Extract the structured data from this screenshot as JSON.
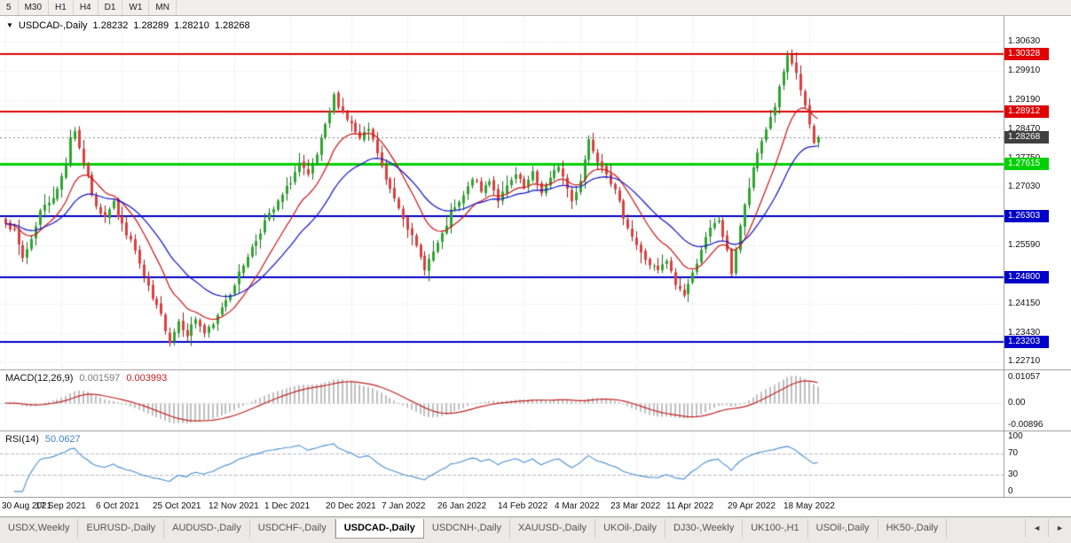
{
  "toolbar": {
    "timeframes": [
      "5",
      "M30",
      "H1",
      "H4",
      "D1",
      "W1",
      "MN"
    ]
  },
  "chart": {
    "symbol_period": "USDCAD-,Daily",
    "open": "1.28232",
    "high": "1.28289",
    "low": "1.28210",
    "close": "1.28268"
  },
  "colors": {
    "grid": "#dedede",
    "up_fill": "#2fa52f",
    "up_stroke": "#147221",
    "down_fill": "#d94141",
    "down_stroke": "#9e1a1a",
    "macd_hist": "#bfbfbf",
    "macd_signal": "#c42020",
    "rsi_line": "#4a90d2",
    "rsi_level": "#b9b9d0",
    "current_line": "#888888",
    "separator": "#9a9a9a"
  },
  "price_axis": {
    "grid": {
      "start": 1.3063,
      "step": 0.0072,
      "count": 12
    },
    "labels": [
      {
        "text": "1.30630",
        "value": 1.3063
      },
      {
        "text": "1.29910",
        "value": 1.2991
      },
      {
        "text": "1.29190",
        "value": 1.2919
      },
      {
        "text": "1.28470",
        "value": 1.2847
      },
      {
        "text": "1.27750",
        "value": 1.2775
      },
      {
        "text": "1.27030",
        "value": 1.2703
      },
      {
        "text": "1.25590",
        "value": 1.2559
      },
      {
        "text": "1.24150",
        "value": 1.2415
      },
      {
        "text": "1.23430",
        "value": 1.2343
      },
      {
        "text": "1.22710",
        "value": 1.2271
      }
    ]
  },
  "levels": [
    {
      "label": "1.30328",
      "value": 1.30328,
      "color": "#e00000",
      "width": 2
    },
    {
      "label": "1.28912",
      "value": 1.28912,
      "color": "#e00000",
      "width": 2
    },
    {
      "label": "1.27615",
      "value": 1.27615,
      "color": "#00d000",
      "width": 3
    },
    {
      "label": "1.26303",
      "value": 1.26303,
      "color": "#0000c8",
      "width": 2
    },
    {
      "label": "1.24800",
      "value": 1.248,
      "color": "#0000c8",
      "width": 2
    },
    {
      "label": "1.23203",
      "value": 1.23203,
      "color": "#0000c8",
      "width": 2
    }
  ],
  "current_price": {
    "label": "1.28268",
    "value": 1.28268,
    "badge_color": "#404040"
  },
  "overlays": [
    {
      "name": "ma-fast",
      "type": "ema",
      "period": 12,
      "color": "#cc1111"
    },
    {
      "name": "ma-slow",
      "type": "ema",
      "period": 26,
      "color": "#1111cc"
    }
  ],
  "macd": {
    "label": "MACD(12,26,9)",
    "value_main": "0.001597",
    "value_signal": "0.003993",
    "fast": 12,
    "slow": 26,
    "signal": 9,
    "range": {
      "min": -0.0113,
      "max": 0.0135
    },
    "axis_labels": [
      {
        "text": "0.01057",
        "value": 0.01057
      },
      {
        "text": "0.00",
        "value": 0
      },
      {
        "text": "-0.00896",
        "value": -0.00896
      }
    ]
  },
  "rsi": {
    "label": "RSI(14)",
    "value": "50.0627",
    "period": 14,
    "levels": [
      70,
      30
    ],
    "range": {
      "min": -10,
      "max": 110
    },
    "axis_labels": [
      {
        "text": "100",
        "value": 100
      },
      {
        "text": "70",
        "value": 70
      },
      {
        "text": "30",
        "value": 30
      },
      {
        "text": "0",
        "value": 0
      }
    ]
  },
  "chart_data": {
    "type": "candlestick",
    "symbol": "USDCAD-",
    "period": "Daily",
    "num_candles": 189,
    "seed": 7,
    "last_close": 1.28268,
    "price_range": {
      "min": 1.2252,
      "max": 1.3127
    },
    "close_anchors": [
      [
        0,
        1.262
      ],
      [
        2,
        1.259
      ],
      [
        4,
        1.2527
      ],
      [
        6,
        1.2575
      ],
      [
        8,
        1.2645
      ],
      [
        10,
        1.2668
      ],
      [
        12,
        1.2695
      ],
      [
        14,
        1.2765
      ],
      [
        15,
        1.2828
      ],
      [
        16,
        1.2845
      ],
      [
        17,
        1.28
      ],
      [
        19,
        1.2725
      ],
      [
        21,
        1.265
      ],
      [
        23,
        1.2635
      ],
      [
        25,
        1.2672
      ],
      [
        26,
        1.2628
      ],
      [
        28,
        1.259
      ],
      [
        30,
        1.2545
      ],
      [
        32,
        1.248
      ],
      [
        34,
        1.2425
      ],
      [
        36,
        1.2385
      ],
      [
        38,
        1.2322
      ],
      [
        40,
        1.2372
      ],
      [
        42,
        1.234
      ],
      [
        44,
        1.2378
      ],
      [
        46,
        1.2342
      ],
      [
        48,
        1.236
      ],
      [
        50,
        1.2408
      ],
      [
        52,
        1.2442
      ],
      [
        54,
        1.2488
      ],
      [
        56,
        1.2535
      ],
      [
        58,
        1.2572
      ],
      [
        60,
        1.2618
      ],
      [
        62,
        1.2648
      ],
      [
        64,
        1.2682
      ],
      [
        66,
        1.2718
      ],
      [
        68,
        1.2762
      ],
      [
        70,
        1.2728
      ],
      [
        72,
        1.2782
      ],
      [
        74,
        1.2852
      ],
      [
        76,
        1.2928
      ],
      [
        78,
        1.2888
      ],
      [
        80,
        1.2858
      ],
      [
        82,
        1.282
      ],
      [
        84,
        1.2846
      ],
      [
        86,
        1.2788
      ],
      [
        88,
        1.2718
      ],
      [
        90,
        1.2678
      ],
      [
        92,
        1.2632
      ],
      [
        94,
        1.2578
      ],
      [
        96,
        1.2528
      ],
      [
        97,
        1.2505
      ],
      [
        99,
        1.2542
      ],
      [
        101,
        1.2582
      ],
      [
        103,
        1.264
      ],
      [
        105,
        1.2662
      ],
      [
        107,
        1.27
      ],
      [
        108,
        1.2728
      ],
      [
        110,
        1.2692
      ],
      [
        112,
        1.2722
      ],
      [
        114,
        1.2672
      ],
      [
        116,
        1.2702
      ],
      [
        118,
        1.2732
      ],
      [
        120,
        1.27
      ],
      [
        122,
        1.2736
      ],
      [
        124,
        1.2692
      ],
      [
        126,
        1.2722
      ],
      [
        128,
        1.2758
      ],
      [
        130,
        1.27
      ],
      [
        131,
        1.2668
      ],
      [
        133,
        1.2722
      ],
      [
        135,
        1.2822
      ],
      [
        137,
        1.2772
      ],
      [
        139,
        1.2742
      ],
      [
        141,
        1.2692
      ],
      [
        143,
        1.2632
      ],
      [
        145,
        1.2582
      ],
      [
        147,
        1.2538
      ],
      [
        149,
        1.2512
      ],
      [
        151,
        1.2495
      ],
      [
        153,
        1.252
      ],
      [
        155,
        1.2462
      ],
      [
        157,
        1.2438
      ],
      [
        159,
        1.2488
      ],
      [
        161,
        1.2552
      ],
      [
        163,
        1.2598
      ],
      [
        165,
        1.2622
      ],
      [
        167,
        1.2542
      ],
      [
        168,
        1.2492
      ],
      [
        170,
        1.2608
      ],
      [
        172,
        1.2702
      ],
      [
        174,
        1.2788
      ],
      [
        176,
        1.2848
      ],
      [
        178,
        1.2905
      ],
      [
        180,
        1.2988
      ],
      [
        181,
        1.3022
      ],
      [
        183,
        1.2986
      ],
      [
        185,
        1.2902
      ],
      [
        186,
        1.2852
      ],
      [
        187,
        1.2812
      ],
      [
        188,
        1.28268
      ]
    ],
    "x_labels": [
      "30 Aug 2021",
      "17 Sep 2021",
      "6 Oct 2021",
      "25 Oct 2021",
      "12 Nov 2021",
      "1 Dec 2021",
      "20 Dec 2021",
      "7 Jan 2022",
      "26 Jan 2022",
      "14 Feb 2022",
      "4 Mar 2022",
      "23 Mar 2022",
      "11 Apr 2022",
      "29 Apr 2022",
      "18 May 2022"
    ],
    "x_tick_indices": [
      0,
      13,
      27,
      40,
      53,
      66,
      80,
      93,
      106,
      120,
      133,
      146,
      159,
      173,
      186
    ]
  },
  "tabs": {
    "items": [
      {
        "label": "USDX,Weekly",
        "active": false
      },
      {
        "label": "EURUSD-,Daily",
        "active": false
      },
      {
        "label": "AUDUSD-,Daily",
        "active": false
      },
      {
        "label": "USDCHF-,Daily",
        "active": false
      },
      {
        "label": "USDCAD-,Daily",
        "active": true
      },
      {
        "label": "USDCNH-,Daily",
        "active": false
      },
      {
        "label": "XAUUSD-,Daily",
        "active": false
      },
      {
        "label": "UKOil-,Daily",
        "active": false
      },
      {
        "label": "DJ30-,Weekly",
        "active": false
      },
      {
        "label": "UK100-,H1",
        "active": false
      },
      {
        "label": "USOil-,Daily",
        "active": false
      },
      {
        "label": "HK50-,Daily",
        "active": false
      }
    ],
    "nav_left": "◄",
    "nav_right": "►"
  }
}
